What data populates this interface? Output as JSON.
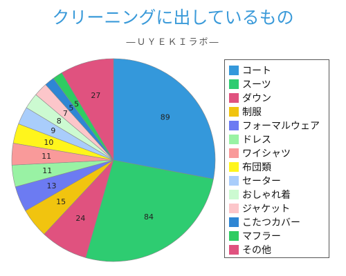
{
  "chart_data": {
    "type": "pie",
    "title": "クリーニングに出しているもの",
    "subtitle": "―ＵＹＥＫＩラボ―",
    "start_angle_deg": 0,
    "direction": "clockwise",
    "legend_position": "right",
    "slices": [
      {
        "label": "コート",
        "value": 89,
        "color": "#3498db"
      },
      {
        "label": "スーツ",
        "value": 84,
        "color": "#2ecc71"
      },
      {
        "label": "ダウン",
        "value": 24,
        "color": "#e0527f"
      },
      {
        "label": "制服",
        "value": 15,
        "color": "#f1c40f"
      },
      {
        "label": "フォーマルウェア",
        "value": 13,
        "color": "#6c7bf2"
      },
      {
        "label": "ドレス",
        "value": 11,
        "color": "#99f2a4"
      },
      {
        "label": "ワイシャツ",
        "value": 11,
        "color": "#f99a9a"
      },
      {
        "label": "布団類",
        "value": 10,
        "color": "#fff51c"
      },
      {
        "label": "セーター",
        "value": 9,
        "color": "#a9cdfb"
      },
      {
        "label": "おしゃれ着",
        "value": 8,
        "color": "#ccfad1"
      },
      {
        "label": "ジャケット",
        "value": 7,
        "color": "#fcc6ca"
      },
      {
        "label": "こたつカバー",
        "value": 5,
        "color": "#2e86d4"
      },
      {
        "label": "マフラー",
        "value": 5,
        "color": "#2fcc62"
      },
      {
        "label": "その他",
        "value": 27,
        "color": "#e0527f"
      }
    ]
  }
}
